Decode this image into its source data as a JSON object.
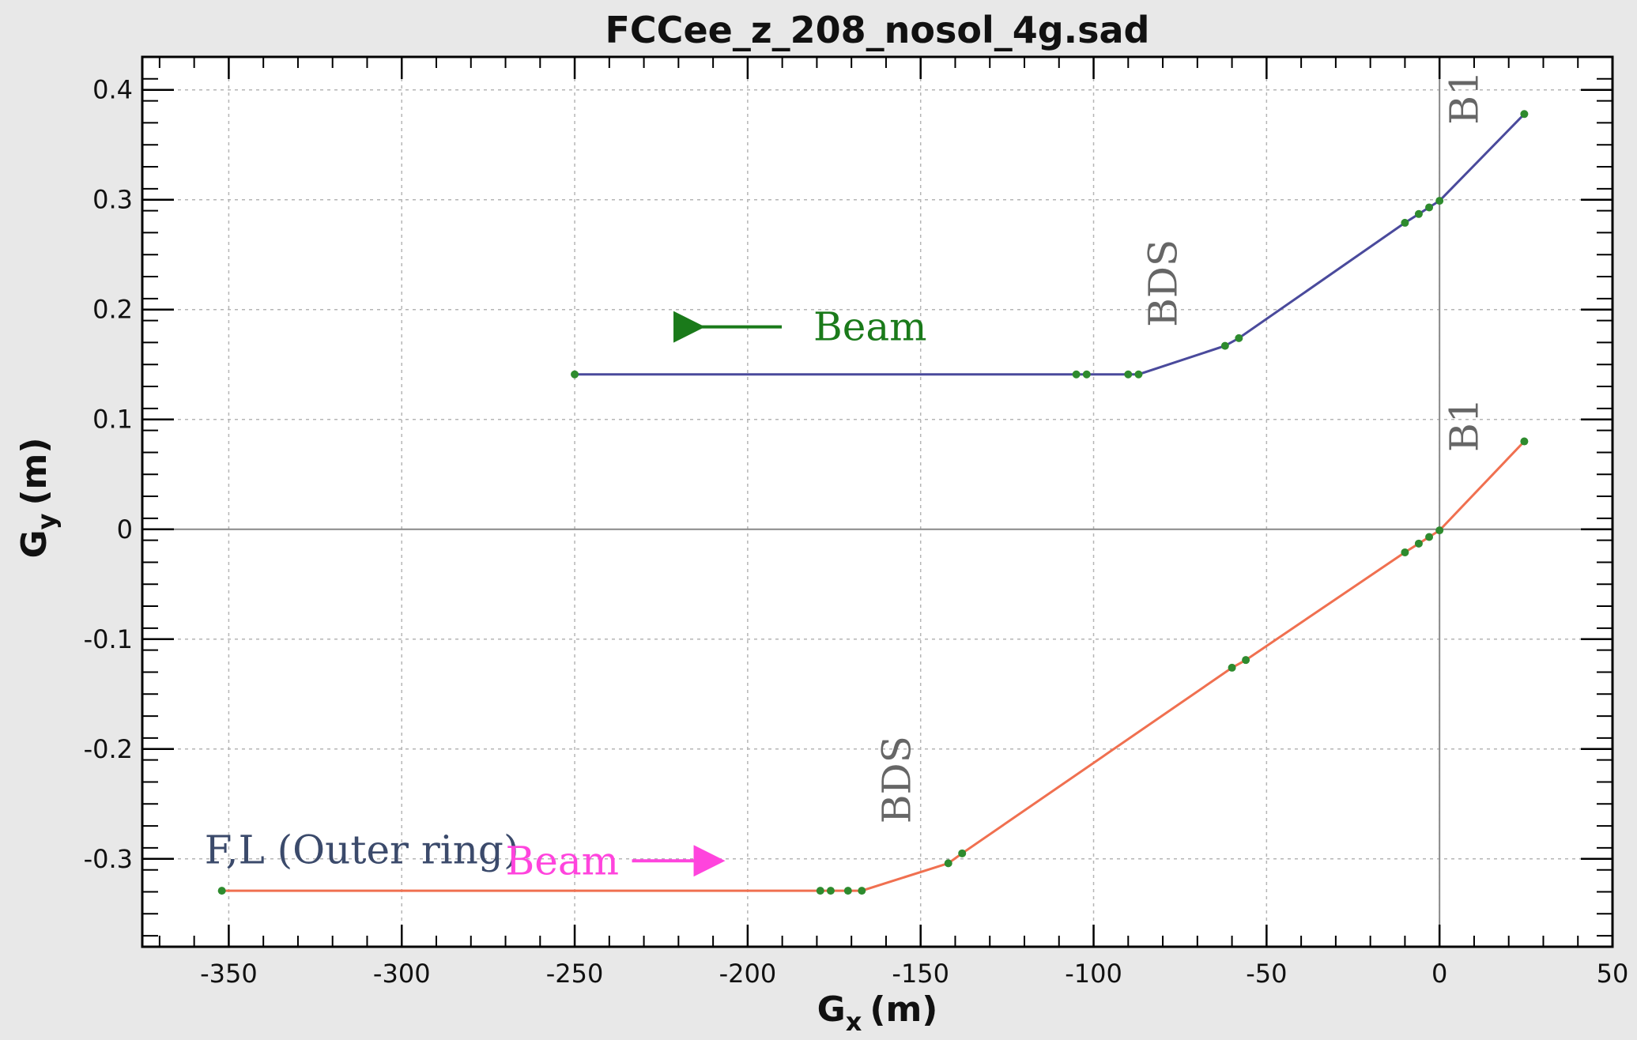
{
  "chart_data": {
    "type": "line",
    "title": "FCCee_z_208_nosol_4g.sad",
    "xlabel": "G",
    "xlabel_sub": "x",
    "xlabel_unit": "(m)",
    "ylabel": "G",
    "ylabel_sub": "y",
    "ylabel_unit": "(m)",
    "xlim": [
      -375,
      50
    ],
    "ylim": [
      -0.38,
      0.43
    ],
    "grid": true,
    "x_ticks": [
      -350,
      -300,
      -250,
      -200,
      -150,
      -100,
      -50,
      0,
      50
    ],
    "y_ticks": [
      0.4,
      0.3,
      0.2,
      0.1,
      0,
      -0.1,
      -0.2,
      -0.3
    ],
    "x_tick_labels": [
      "-350",
      "-300",
      "-250",
      "-200",
      "-150",
      "-100",
      "-50",
      "0",
      "50"
    ],
    "y_tick_labels": [
      "0.4",
      "0.3",
      "0.2",
      "0.1",
      "0",
      "-0.1",
      "-0.2",
      "-0.3"
    ],
    "reference_lines": {
      "y": 0,
      "x": 0
    },
    "series": [
      {
        "color": "#4a4a9c",
        "marker_color": "#2e8b2e",
        "x": [
          -250,
          -105,
          -102,
          -90,
          -87,
          -62,
          -58,
          -10,
          -6,
          -3,
          0,
          24.5
        ],
        "y": [
          0.141,
          0.141,
          0.141,
          0.141,
          0.141,
          0.167,
          0.174,
          0.279,
          0.287,
          0.293,
          0.299,
          0.378
        ]
      },
      {
        "color": "#f07050",
        "marker_color": "#2e8b2e",
        "x": [
          -352,
          -179,
          -176,
          -171,
          -167,
          -142,
          -138,
          -60,
          -56,
          -10,
          -6,
          -3,
          0,
          24.5
        ],
        "y": [
          -0.329,
          -0.329,
          -0.329,
          -0.329,
          -0.329,
          -0.304,
          -0.295,
          -0.126,
          -0.119,
          -0.021,
          -0.013,
          -0.007,
          -0.001,
          0.08
        ]
      }
    ],
    "annotations": [
      {
        "text": "Beam",
        "color": "#1a7a1a",
        "x": -181,
        "y": 0.172,
        "arrow": "left"
      },
      {
        "text": "BDS",
        "color": "#666666",
        "x": -76,
        "y": 0.224,
        "rotate": -90
      },
      {
        "text": "B1",
        "color": "#666666",
        "x": 11,
        "y": 0.393,
        "rotate": -90
      },
      {
        "text": "B1",
        "color": "#666666",
        "x": 11,
        "y": 0.095,
        "rotate": -90
      },
      {
        "text": "BDS",
        "color": "#666666",
        "x": -153,
        "y": -0.228,
        "rotate": -90
      },
      {
        "text": "F,L (Outer ring)",
        "color": "#3b4a6b",
        "x": -357,
        "y": -0.304
      },
      {
        "text": "Beam",
        "color": "#ff44dd",
        "x": -270,
        "y": -0.314,
        "arrow": "right"
      }
    ]
  }
}
